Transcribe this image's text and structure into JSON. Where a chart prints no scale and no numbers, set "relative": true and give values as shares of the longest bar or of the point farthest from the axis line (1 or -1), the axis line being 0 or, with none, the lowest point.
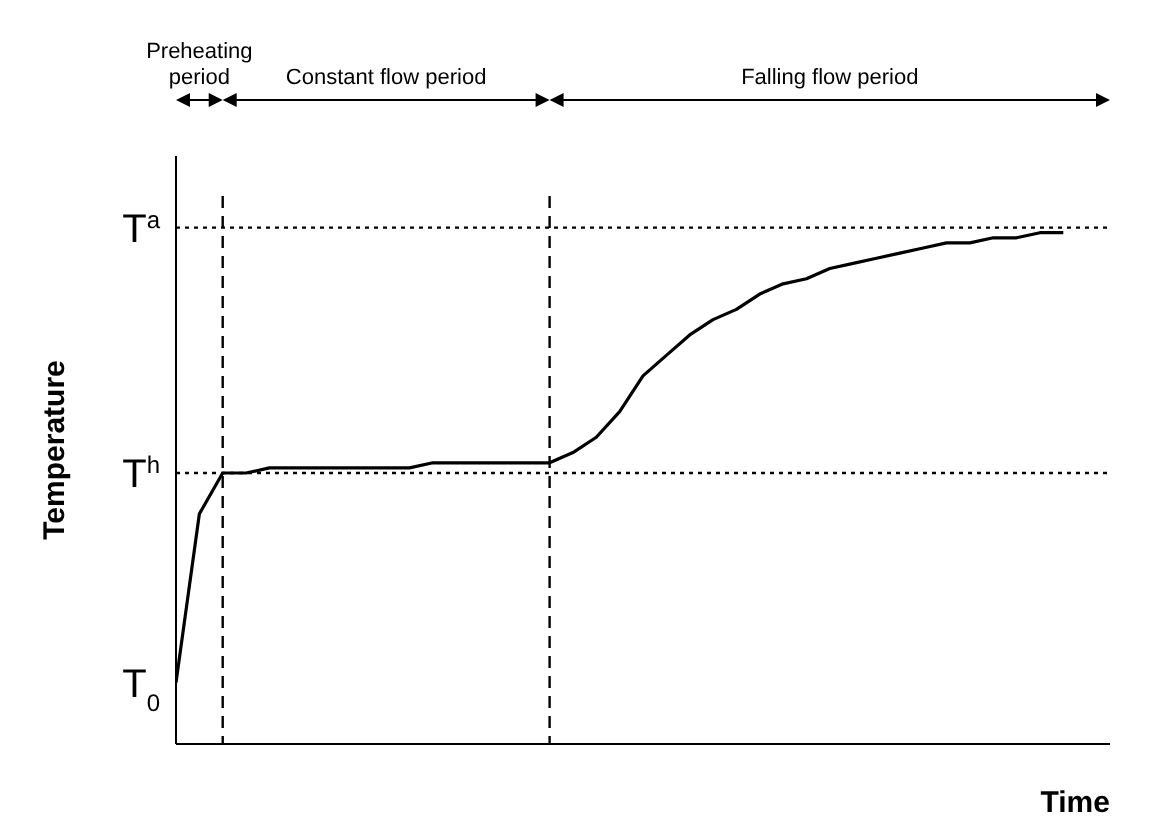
{
  "chart_data": {
    "type": "line",
    "relative": true,
    "xlabel": "Time",
    "ylabel": "Temperature",
    "categories": [
      null,
      null,
      null,
      null,
      null,
      null,
      null,
      null,
      null,
      null,
      null,
      null,
      null,
      null,
      null,
      null,
      null,
      null,
      null,
      null,
      null,
      null,
      null,
      null,
      null,
      null,
      null,
      null,
      null,
      null,
      null,
      null,
      null,
      null,
      null,
      null,
      null,
      null,
      null
    ],
    "series": [
      {
        "color": "#000000",
        "values": [
          0.12,
          0.45,
          0.53,
          0.53,
          0.54,
          0.54,
          0.54,
          0.54,
          0.54,
          0.54,
          0.54,
          0.55,
          0.55,
          0.55,
          0.55,
          0.55,
          0.55,
          0.57,
          0.6,
          0.65,
          0.72,
          0.76,
          0.8,
          0.83,
          0.85,
          0.88,
          0.9,
          0.91,
          0.93,
          0.94,
          0.95,
          0.96,
          0.97,
          0.98,
          0.98,
          0.99,
          0.99,
          1.0,
          1.0
        ]
      }
    ],
    "ref_lines": [
      {
        "axis": "y",
        "value": 0.53,
        "label": "T$^{h}$",
        "line_style": "dotted"
      },
      {
        "axis": "y",
        "value": 1.01,
        "label": "T$^{a}$",
        "line_style": "dotted"
      }
    ],
    "annotations": [
      "T$_{0}$",
      "Preheating period",
      "Constant flow period",
      "Falling flow period"
    ]
  }
}
